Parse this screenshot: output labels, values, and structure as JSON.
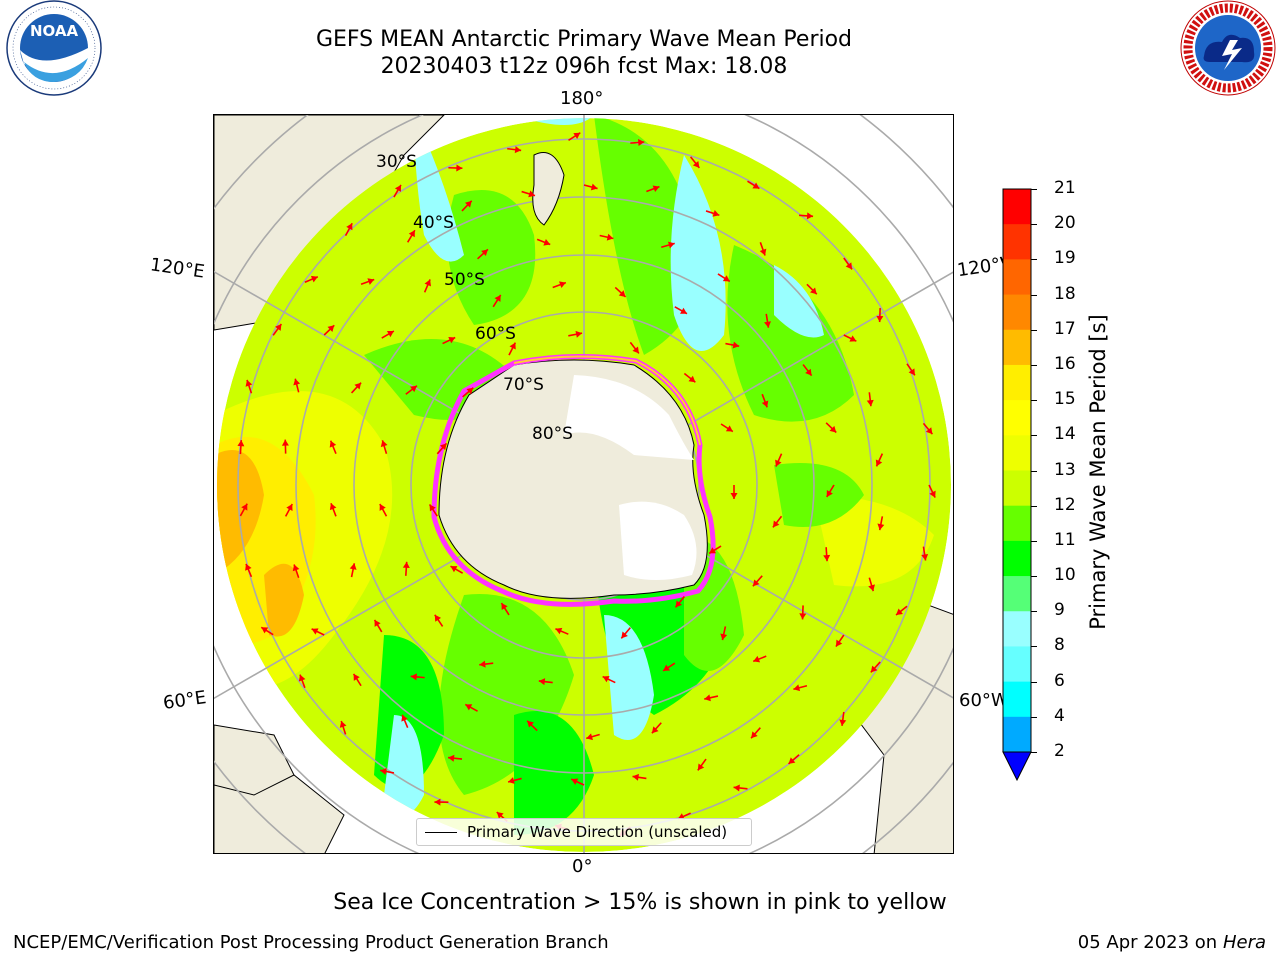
{
  "header": {
    "title_line1": "GEFS MEAN Antarctic Primary Wave Mean Period",
    "title_line2": "20230403 t12z 096h fcst   Max: 18.08"
  },
  "logos": {
    "left": {
      "text": "NOAA",
      "ring_text": "NATIONAL OCEANIC AND ATMOSPHERIC ADMINISTRATION · U.S. DEPARTMENT OF COMMERCE"
    },
    "right": {
      "ring_text": "NATIONAL WEATHER SERVICE"
    }
  },
  "map": {
    "longitude_labels": {
      "top": "180°",
      "bottom": "0°",
      "upper_left": "120°E",
      "lower_left": "60°E",
      "upper_right": "120°W",
      "lower_right": "60°W"
    },
    "latitude_labels": [
      "30°S",
      "40°S",
      "50°S",
      "60°S",
      "70°S",
      "80°S"
    ],
    "legend_label": "Primary Wave Direction (unscaled)",
    "arrow_color": "#ff0000",
    "sea_ice_colors": [
      "#ff33ff",
      "#ffcc33"
    ],
    "land_color": "#efecdc"
  },
  "colorbar": {
    "label": "Primary Wave Mean Period [s]",
    "ticks": [
      "21",
      "20",
      "19",
      "18",
      "17",
      "16",
      "15",
      "14",
      "13",
      "12",
      "11",
      "10",
      "9",
      "8",
      "6",
      "4",
      "2"
    ],
    "colors_top_to_bottom": [
      "#ff0000",
      "#ff3300",
      "#ff6600",
      "#ff8800",
      "#ffbb00",
      "#ffee00",
      "#ffff00",
      "#eeff00",
      "#ccff00",
      "#66ff00",
      "#00ff00",
      "#55ff77",
      "#99ffff",
      "#66ffff",
      "#00ffff",
      "#00aaff",
      "#0000ff"
    ]
  },
  "notes": {
    "sea_ice": "Sea Ice Concentration > 15% is shown in pink to yellow"
  },
  "footer": {
    "left": "NCEP/EMC/Verification Post Processing Product Generation Branch",
    "date": "05 Apr 2023 on",
    "machine": "Hera"
  }
}
